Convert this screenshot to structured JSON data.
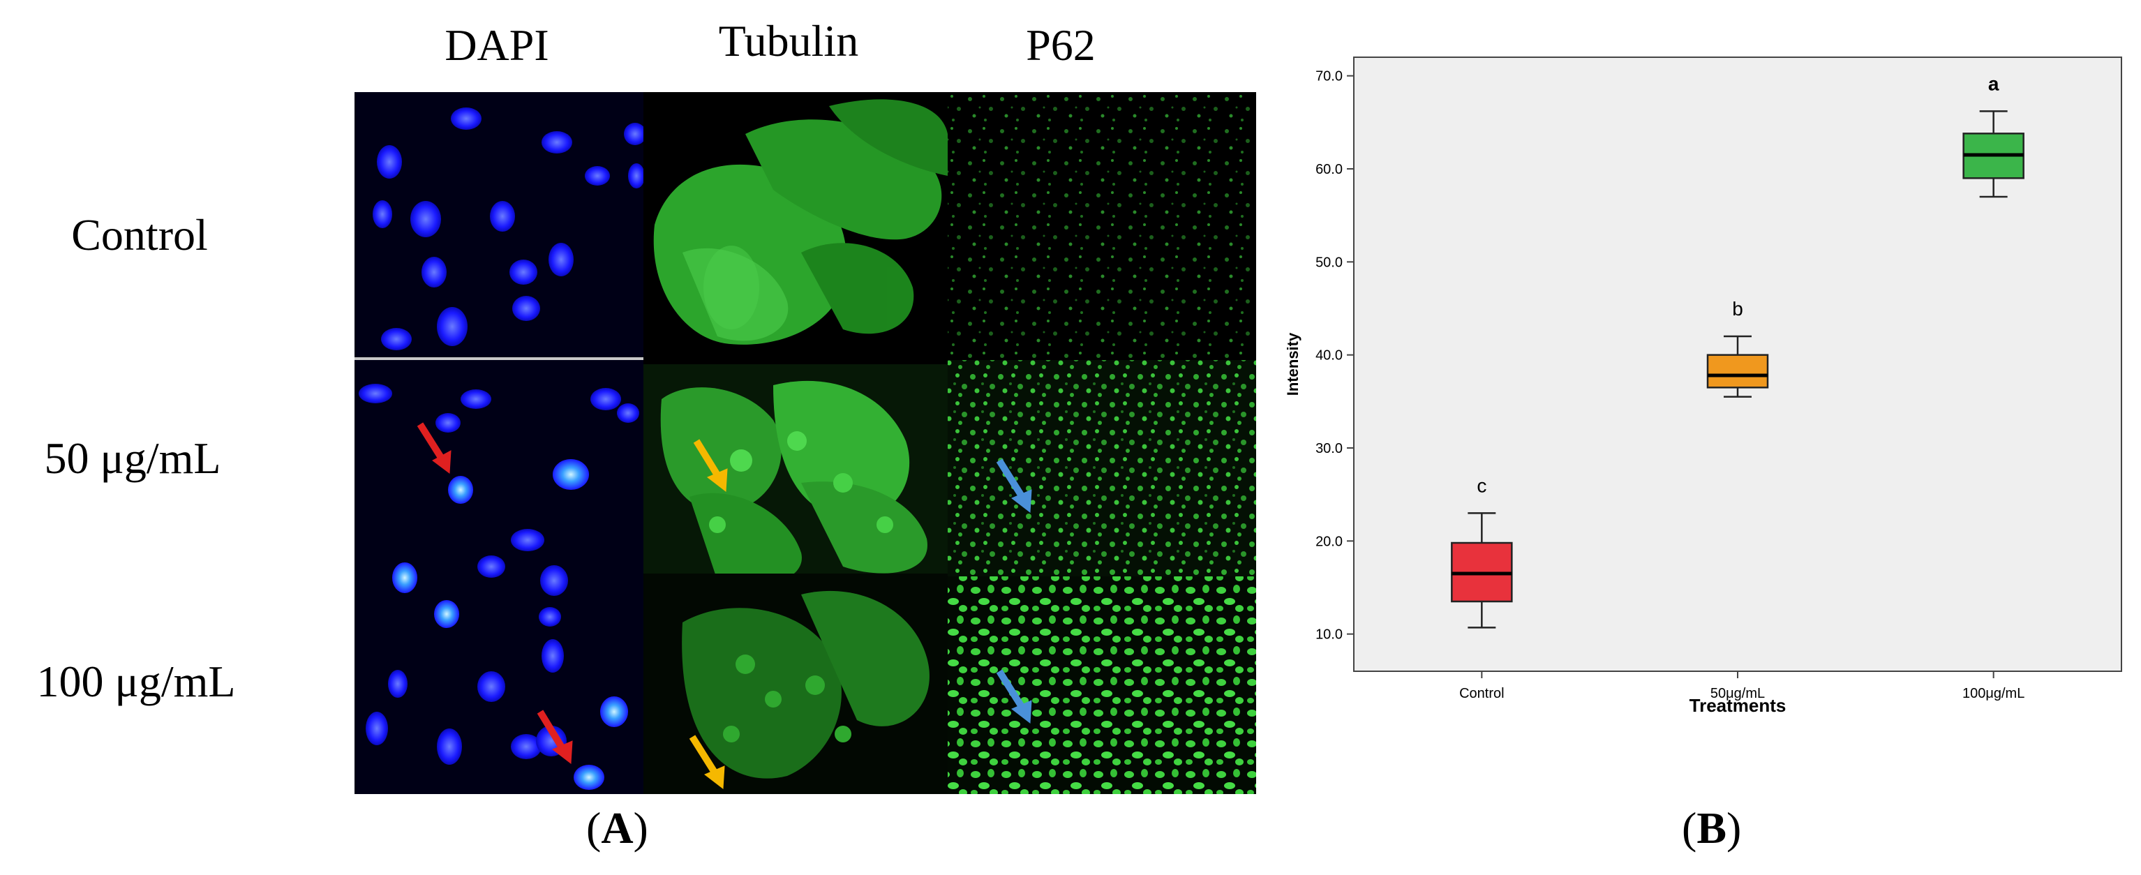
{
  "panel_a": {
    "column_labels": [
      "DAPI",
      "Tubulin",
      "P62"
    ],
    "row_labels": [
      "Control",
      "50 μg/mL",
      "100 μg/mL"
    ],
    "panel_label": "A"
  },
  "panel_b": {
    "panel_label": "B"
  },
  "colors": {
    "dapi": "#1a1aff",
    "green": "#2ecc2e",
    "arrow_red": "#e02020",
    "arrow_orange": "#f5b800",
    "arrow_blue": "#4a90d9"
  },
  "chart_data": {
    "type": "box",
    "xlabel": "Treatments",
    "ylabel": "Intensity",
    "ylim": [
      6.0,
      72.0
    ],
    "yticks": [
      "10.0",
      "20.0",
      "30.0",
      "40.0",
      "50.0",
      "60.0",
      "70.0"
    ],
    "categories": [
      "Control",
      "50μg/mL",
      "100μg/mL"
    ],
    "boxes": [
      {
        "category": "Control",
        "min": 10.7,
        "q1": 13.5,
        "median": 16.5,
        "q3": 19.8,
        "max": 23.0,
        "color": "#e8323c",
        "letter": "c"
      },
      {
        "category": "50μg/mL",
        "min": 35.5,
        "q1": 36.5,
        "median": 37.8,
        "q3": 40.0,
        "max": 42.0,
        "color": "#f0981e",
        "letter": "b"
      },
      {
        "category": "100μg/mL",
        "min": 57.0,
        "q1": 59.0,
        "median": 61.5,
        "q3": 63.8,
        "max": 66.2,
        "color": "#3bb54a",
        "letter": "a"
      }
    ],
    "grid": false,
    "legend": "none"
  }
}
